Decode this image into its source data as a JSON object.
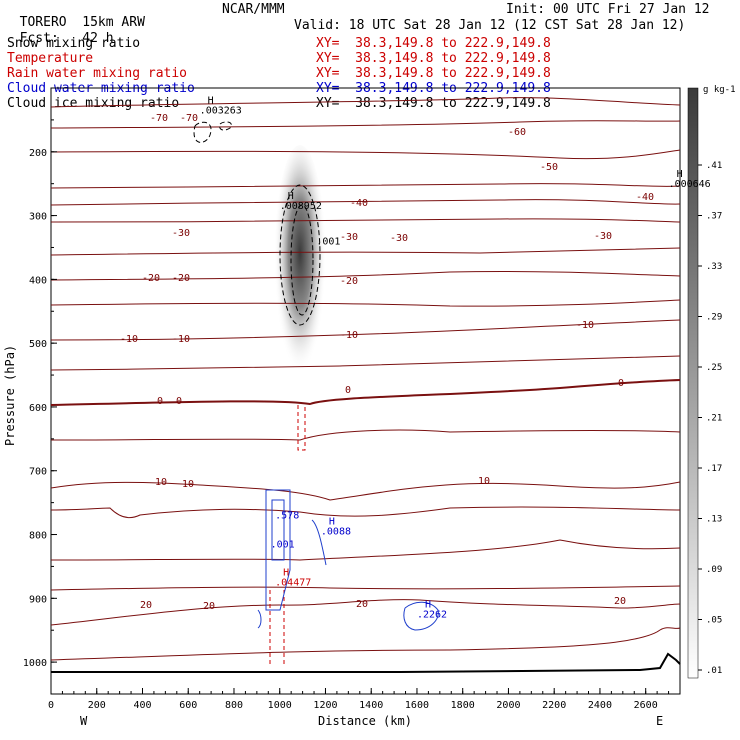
{
  "header": {
    "model": "TORERO",
    "resolution": "15km ARW",
    "center": "NCAR/MMM",
    "init": "Init: 00 UTC Fri 27 Jan 12",
    "fcst_label": "Fcst:",
    "fcst_value": "42 h",
    "valid": "Valid: 18 UTC Sat 28 Jan 12 (12 CST Sat 28 Jan 12)"
  },
  "fields": [
    {
      "name": "Snow mixing ratio",
      "xy": "XY=  38.3,149.8 to 222.9,149.8",
      "color": "#000000"
    },
    {
      "name": "Temperature",
      "xy": "XY=  38.3,149.8 to 222.9,149.8",
      "color": "#cc0000"
    },
    {
      "name": "Rain water mixing ratio",
      "xy": "XY=  38.3,149.8 to 222.9,149.8",
      "color": "#cc0000"
    },
    {
      "name": "Cloud water mixing ratio",
      "xy": "XY=  38.3,149.8 to 222.9,149.8",
      "color": "#0000cc"
    },
    {
      "name": "Cloud ice mixing ratio",
      "xy": "XY=  38.3,149.8 to 222.9,149.8",
      "color": "#000000"
    }
  ],
  "chart_data": {
    "type": "contour_cross_section",
    "xlabel": "Distance (km)",
    "ylabel": "Pressure (hPa)",
    "xlim": [
      0,
      2750
    ],
    "ylim": [
      1050,
      100
    ],
    "x_ticks": [
      0,
      200,
      400,
      600,
      800,
      1000,
      1200,
      1400,
      1600,
      1800,
      2000,
      2200,
      2400,
      2600
    ],
    "y_ticks": [
      200,
      300,
      400,
      500,
      600,
      700,
      800,
      900,
      1000
    ],
    "x_end_labels": {
      "left": "W",
      "right": "E"
    },
    "colorbar": {
      "unit": "g kg-1",
      "ticks": [
        ".41",
        ".37",
        ".33",
        ".29",
        ".25",
        ".21",
        ".17",
        ".13",
        ".09",
        ".05",
        ".01"
      ]
    },
    "temperature_contours": [
      {
        "value": -70,
        "label": "-70"
      },
      {
        "value": -60,
        "label": "-60"
      },
      {
        "value": -50,
        "label": "-50"
      },
      {
        "value": -40,
        "label": "-40"
      },
      {
        "value": -30,
        "label": "-30"
      },
      {
        "value": -20,
        "label": "-20"
      },
      {
        "value": -10,
        "label": "-10"
      },
      {
        "value": 0,
        "label": "0"
      },
      {
        "value": 10,
        "label": "10"
      },
      {
        "value": 20,
        "label": "20"
      }
    ],
    "annotations": [
      {
        "mark": "H",
        "value": ".003263",
        "x": 650,
        "p": 140,
        "color": "#000000"
      },
      {
        "mark": "H",
        "value": ".008952",
        "x": 1000,
        "p": 290,
        "color": "#000000"
      },
      {
        "mark": "H",
        "value": ".000646",
        "x": 2700,
        "p": 255,
        "color": "#000000"
      },
      {
        "mark": "",
        "value": ".001",
        "x": 1160,
        "p": 345,
        "color": "#000000"
      },
      {
        "mark": "",
        "value": ".578",
        "x": 980,
        "p": 775,
        "color": "#0000cc"
      },
      {
        "mark": "H",
        "value": ".0088",
        "x": 1180,
        "p": 800,
        "color": "#0000cc"
      },
      {
        "mark": "",
        "value": ".001",
        "x": 960,
        "p": 820,
        "color": "#0000cc"
      },
      {
        "mark": "H",
        "value": ".04477",
        "x": 980,
        "p": 880,
        "color": "#cc0000"
      },
      {
        "mark": "H",
        "value": ".2262",
        "x": 1600,
        "p": 930,
        "color": "#0000cc"
      }
    ]
  }
}
